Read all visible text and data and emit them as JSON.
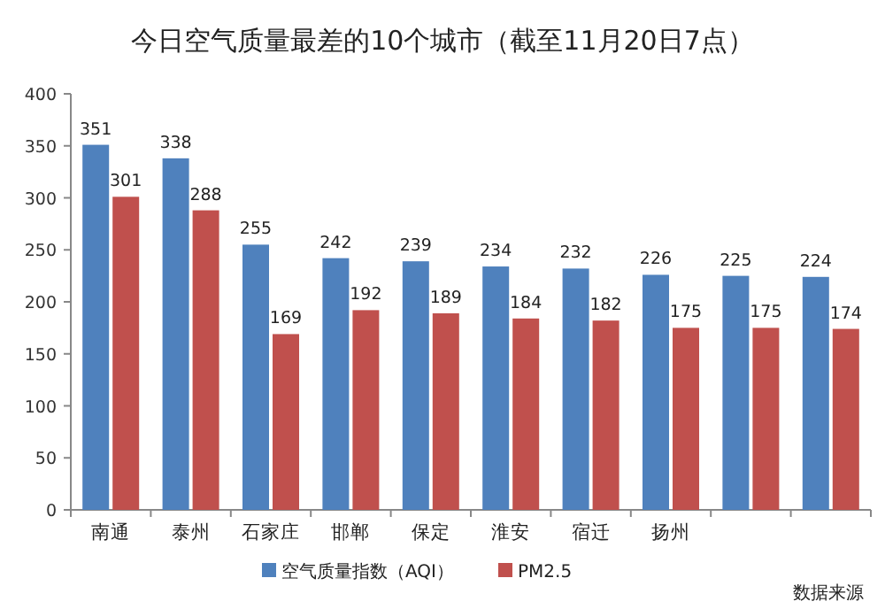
{
  "chart_data": {
    "type": "bar",
    "title": "今日空气质量最差的10个城市（截至11月20日7点）",
    "categories": [
      "南通",
      "泰州",
      "石家庄",
      "邯郸",
      "保定",
      "淮安",
      "宿迁",
      "扬州",
      null,
      null
    ],
    "series": [
      {
        "name": "空气质量指数（AQI）",
        "color": "#4f81bd",
        "values": [
          351,
          338,
          255,
          242,
          239,
          234,
          232,
          226,
          225,
          224
        ]
      },
      {
        "name": "PM2.5",
        "color": "#c0504d",
        "values": [
          301,
          288,
          169,
          192,
          189,
          184,
          182,
          175,
          175,
          174
        ]
      }
    ],
    "ylim": [
      0,
      400
    ],
    "yticks": [
      0,
      50,
      100,
      150,
      200,
      250,
      300,
      350,
      400
    ],
    "data_labels": true,
    "legend": "bottom",
    "grid": false,
    "annotations": [
      "数据来源"
    ]
  }
}
